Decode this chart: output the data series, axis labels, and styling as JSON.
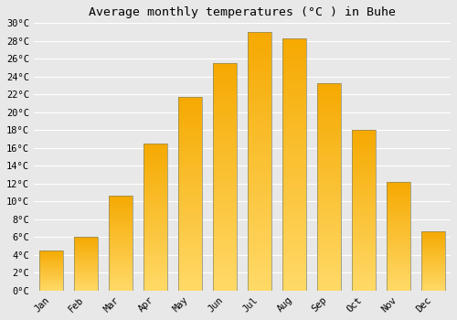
{
  "title": "Average monthly temperatures (°C ) in Buhe",
  "months": [
    "Jan",
    "Feb",
    "Mar",
    "Apr",
    "May",
    "Jun",
    "Jul",
    "Aug",
    "Sep",
    "Oct",
    "Nov",
    "Dec"
  ],
  "values": [
    4.5,
    6.0,
    10.7,
    16.5,
    21.7,
    25.5,
    29.0,
    28.3,
    23.3,
    18.0,
    12.2,
    6.7
  ],
  "bar_color_top": "#F5A800",
  "bar_color_bottom": "#FFD966",
  "bar_edge_color": "#888866",
  "ylim": [
    0,
    30
  ],
  "yticks": [
    0,
    2,
    4,
    6,
    8,
    10,
    12,
    14,
    16,
    18,
    20,
    22,
    24,
    26,
    28,
    30
  ],
  "background_color": "#e8e8e8",
  "plot_bg_color": "#e8e8e8",
  "grid_color": "#ffffff",
  "title_fontsize": 9.5,
  "tick_fontsize": 7.5,
  "figsize": [
    5.0,
    3.5
  ],
  "dpi": 100
}
